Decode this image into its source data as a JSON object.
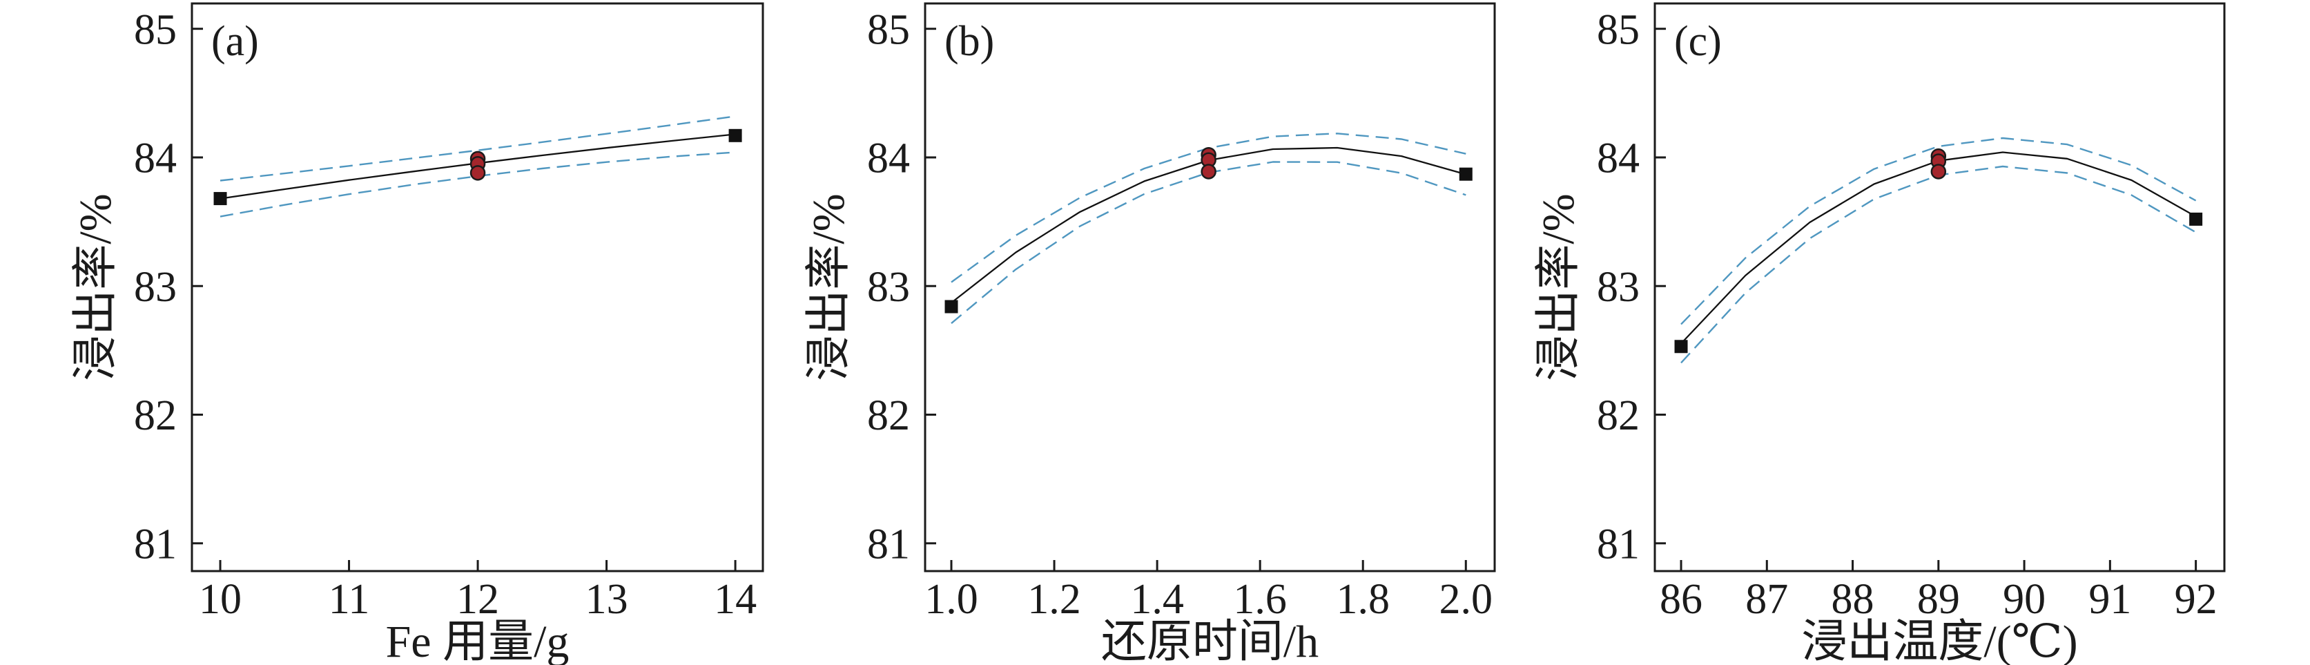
{
  "figure": {
    "background": "#ffffff",
    "description_labels": [
      "(a)",
      "(b)",
      "(c)"
    ]
  },
  "colors": {
    "axis": "#1b1b1b",
    "curve": "#111111",
    "band": "#4f97c0",
    "square_fill": "#111111",
    "circle_fill": "#a4262c",
    "circle_stroke": "#1b1b1b"
  },
  "chart_data": [
    {
      "type": "line",
      "panel_label": "(a)",
      "xlabel": "Fe 用量/g",
      "ylabel": "浸出率/%",
      "xlim": [
        9.78,
        14.214
      ],
      "ylim": [
        80.784,
        85.197
      ],
      "xticks": [
        10,
        11,
        12,
        13,
        14
      ],
      "xtick_labels": [
        "10",
        "11",
        "12",
        "13",
        "14"
      ],
      "yticks": [
        81,
        82,
        83,
        84,
        85
      ],
      "ytick_labels": [
        "81",
        "82",
        "83",
        "84",
        "85"
      ],
      "grid": false,
      "legend": "none",
      "series": [
        {
          "name": "fit-curve",
          "role": "line",
          "style": "solid",
          "points": [
            [
              10,
              83.68
            ],
            [
              10.5,
              83.753
            ],
            [
              11,
              83.824
            ],
            [
              11.5,
              83.891
            ],
            [
              12,
              83.955
            ],
            [
              12.5,
              84.016
            ],
            [
              13,
              84.074
            ],
            [
              13.5,
              84.128
            ],
            [
              14,
              84.18
            ]
          ]
        },
        {
          "name": "confidence-upper",
          "role": "line",
          "style": "dashed",
          "points": [
            [
              10,
              83.82
            ],
            [
              10.5,
              83.876
            ],
            [
              11,
              83.934
            ],
            [
              11.5,
              83.994
            ],
            [
              12,
              84.055
            ],
            [
              12.5,
              84.119
            ],
            [
              13,
              84.184
            ],
            [
              13.5,
              84.251
            ],
            [
              14,
              84.32
            ]
          ]
        },
        {
          "name": "confidence-lower",
          "role": "line",
          "style": "dashed",
          "points": [
            [
              10,
              83.54
            ],
            [
              10.5,
              83.631
            ],
            [
              11,
              83.714
            ],
            [
              11.5,
              83.789
            ],
            [
              12,
              83.855
            ],
            [
              12.5,
              83.914
            ],
            [
              13,
              83.964
            ],
            [
              13.5,
              84.006
            ],
            [
              14,
              84.04
            ]
          ]
        },
        {
          "name": "design-points",
          "role": "marker",
          "marker": "square",
          "points": [
            [
              10,
              83.68
            ],
            [
              14,
              84.17
            ]
          ]
        },
        {
          "name": "center-points",
          "role": "marker",
          "marker": "circle",
          "points": [
            [
              12,
              83.99
            ],
            [
              12,
              83.95
            ],
            [
              12,
              83.88
            ]
          ]
        }
      ]
    },
    {
      "type": "line",
      "panel_label": "(b)",
      "xlabel": "还原时间/h",
      "ylabel": "浸出率/%",
      "xlim": [
        0.949,
        2.056
      ],
      "ylim": [
        80.784,
        85.197
      ],
      "xticks": [
        1.0,
        1.2,
        1.4,
        1.6,
        1.8,
        2.0
      ],
      "xtick_labels": [
        "1.0",
        "1.2",
        "1.4",
        "1.6",
        "1.8",
        "2.0"
      ],
      "yticks": [
        81,
        82,
        83,
        84,
        85
      ],
      "ytick_labels": [
        "81",
        "82",
        "83",
        "84",
        "85"
      ],
      "grid": false,
      "legend": "none",
      "series": [
        {
          "name": "fit-curve",
          "role": "line",
          "style": "solid",
          "points": [
            [
              1.0,
              82.87
            ],
            [
              1.125,
              83.261
            ],
            [
              1.25,
              83.576
            ],
            [
              1.375,
              83.815
            ],
            [
              1.5,
              83.978
            ],
            [
              1.625,
              84.064
            ],
            [
              1.75,
              84.075
            ],
            [
              1.875,
              84.01
            ],
            [
              2.0,
              83.868
            ]
          ]
        },
        {
          "name": "confidence-upper",
          "role": "line",
          "style": "dashed",
          "points": [
            [
              1.0,
              83.03
            ],
            [
              1.125,
              83.393
            ],
            [
              1.25,
              83.687
            ],
            [
              1.375,
              83.914
            ],
            [
              1.5,
              84.073
            ],
            [
              1.625,
              84.163
            ],
            [
              1.75,
              84.186
            ],
            [
              1.875,
              84.142
            ],
            [
              2.0,
              84.028
            ]
          ]
        },
        {
          "name": "confidence-lower",
          "role": "line",
          "style": "dashed",
          "points": [
            [
              1.0,
              82.71
            ],
            [
              1.125,
              83.129
            ],
            [
              1.25,
              83.465
            ],
            [
              1.375,
              83.716
            ],
            [
              1.5,
              83.883
            ],
            [
              1.625,
              83.965
            ],
            [
              1.75,
              83.964
            ],
            [
              1.875,
              83.878
            ],
            [
              2.0,
              83.708
            ]
          ]
        },
        {
          "name": "design-points",
          "role": "marker",
          "marker": "square",
          "points": [
            [
              1.0,
              82.84
            ],
            [
              2.0,
              83.87
            ]
          ]
        },
        {
          "name": "center-points",
          "role": "marker",
          "marker": "circle",
          "points": [
            [
              1.5,
              84.02
            ],
            [
              1.5,
              83.98
            ],
            [
              1.5,
              83.89
            ]
          ]
        }
      ]
    },
    {
      "type": "line",
      "panel_label": "(c)",
      "xlabel": "浸出温度/(℃)",
      "ylabel": "浸出率/%",
      "xlim": [
        85.694,
        92.333
      ],
      "ylim": [
        80.784,
        85.197
      ],
      "xticks": [
        86,
        87,
        88,
        89,
        90,
        91,
        92
      ],
      "xtick_labels": [
        "86",
        "87",
        "88",
        "89",
        "90",
        "91",
        "92"
      ],
      "yticks": [
        81,
        82,
        83,
        84,
        85
      ],
      "ytick_labels": [
        "81",
        "82",
        "83",
        "84",
        "85"
      ],
      "grid": false,
      "legend": "none",
      "series": [
        {
          "name": "fit-curve",
          "role": "line",
          "style": "solid",
          "points": [
            [
              86,
              82.553
            ],
            [
              86.75,
              83.082
            ],
            [
              87.5,
              83.495
            ],
            [
              88.25,
              83.793
            ],
            [
              89,
              83.974
            ],
            [
              89.75,
              84.04
            ],
            [
              90.5,
              83.99
            ],
            [
              91.25,
              83.823
            ],
            [
              92,
              83.541
            ]
          ]
        },
        {
          "name": "confidence-upper",
          "role": "line",
          "style": "dashed",
          "points": [
            [
              86,
              82.703
            ],
            [
              86.75,
              83.218
            ],
            [
              87.5,
              83.62
            ],
            [
              88.25,
              83.91
            ],
            [
              89,
              84.086
            ],
            [
              89.75,
              84.15
            ],
            [
              90.5,
              84.101
            ],
            [
              91.25,
              83.939
            ],
            [
              92,
              83.664
            ]
          ]
        },
        {
          "name": "confidence-lower",
          "role": "line",
          "style": "dashed",
          "points": [
            [
              86,
              82.403
            ],
            [
              86.75,
              82.946
            ],
            [
              87.5,
              83.37
            ],
            [
              88.25,
              83.676
            ],
            [
              89,
              83.862
            ],
            [
              89.75,
              83.93
            ],
            [
              90.5,
              83.879
            ],
            [
              91.25,
              83.707
            ],
            [
              92,
              83.418
            ]
          ]
        },
        {
          "name": "design-points",
          "role": "marker",
          "marker": "square",
          "points": [
            [
              86,
              82.53
            ],
            [
              92,
              83.52
            ]
          ]
        },
        {
          "name": "center-points",
          "role": "marker",
          "marker": "circle",
          "points": [
            [
              89,
              84.01
            ],
            [
              89,
              83.97
            ],
            [
              89,
              83.89
            ]
          ]
        }
      ]
    }
  ]
}
